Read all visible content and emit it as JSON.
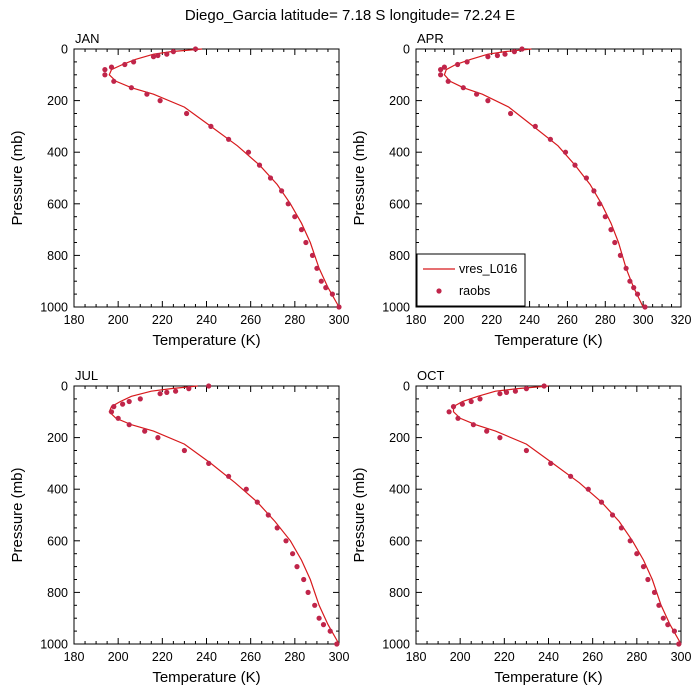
{
  "figure": {
    "title": "Diego_Garcia  latitude= 7.18 S longitude= 72.24 E"
  },
  "colors": {
    "model": "#d7191c",
    "obs": "#c0254a"
  },
  "chart_data": [
    {
      "type": "line",
      "panel": "JAN",
      "xlabel": "Temperature (K)",
      "ylabel": "Pressure (mb)",
      "xlim": [
        180,
        300
      ],
      "ylim": [
        0,
        1000
      ],
      "y_inverted": true,
      "xticks": [
        180,
        200,
        220,
        240,
        260,
        280,
        300
      ],
      "yticks": [
        0,
        200,
        400,
        600,
        800,
        1000
      ],
      "series": [
        {
          "name": "vres_L016",
          "style": "line",
          "x": [
            238,
            224,
            216,
            208,
            202,
            197,
            196,
            199,
            206,
            216,
            230,
            242,
            254,
            264,
            272,
            278,
            283,
            287,
            291,
            295,
            300
          ],
          "p": [
            0,
            10,
            20,
            40,
            60,
            80,
            100,
            125,
            150,
            175,
            225,
            300,
            375,
            450,
            525,
            600,
            675,
            750,
            850,
            925,
            1000
          ]
        },
        {
          "name": "raobs",
          "style": "points",
          "x": [
            235,
            225,
            222,
            218,
            216,
            207,
            203,
            197,
            194,
            194,
            198,
            206,
            213,
            219,
            231,
            242,
            250,
            259,
            264,
            269,
            274,
            277,
            280,
            283,
            285,
            288,
            290,
            292,
            294,
            297,
            300
          ],
          "p": [
            0,
            10,
            20,
            25,
            30,
            50,
            60,
            70,
            80,
            100,
            125,
            150,
            175,
            200,
            250,
            300,
            350,
            400,
            450,
            500,
            550,
            600,
            650,
            700,
            750,
            800,
            850,
            900,
            925,
            950,
            1000
          ]
        }
      ]
    },
    {
      "type": "line",
      "panel": "APR",
      "xlabel": "Temperature (K)",
      "ylabel": "Pressure (mb)",
      "xlim": [
        180,
        320
      ],
      "ylim": [
        0,
        1000
      ],
      "y_inverted": true,
      "xticks": [
        180,
        200,
        220,
        240,
        260,
        280,
        300,
        320
      ],
      "yticks": [
        0,
        200,
        400,
        600,
        800,
        1000
      ],
      "series": [
        {
          "name": "vres_L016",
          "style": "line",
          "x": [
            241,
            227,
            218,
            209,
            201,
            196,
            195,
            198,
            205,
            215,
            229,
            242,
            255,
            264,
            272,
            278,
            283,
            287,
            291,
            295,
            300
          ],
          "p": [
            0,
            10,
            20,
            40,
            60,
            80,
            100,
            125,
            150,
            175,
            225,
            300,
            375,
            450,
            525,
            600,
            675,
            750,
            850,
            925,
            1000
          ]
        },
        {
          "name": "raobs",
          "style": "points",
          "x": [
            236,
            232,
            227,
            223,
            218,
            207,
            202,
            195,
            193,
            193,
            197,
            205,
            212,
            218,
            230,
            243,
            251,
            259,
            264,
            270,
            274,
            277,
            280,
            283,
            285,
            288,
            291,
            293,
            295,
            297,
            301
          ],
          "p": [
            0,
            10,
            20,
            25,
            30,
            50,
            60,
            70,
            80,
            100,
            125,
            150,
            175,
            200,
            250,
            300,
            350,
            400,
            450,
            500,
            550,
            600,
            650,
            700,
            750,
            800,
            850,
            900,
            925,
            950,
            1000
          ]
        }
      ],
      "legend": {
        "position": "bottom-left",
        "entries": [
          "vres_L016",
          "raobs"
        ]
      }
    },
    {
      "type": "line",
      "panel": "JUL",
      "xlabel": "Temperature (K)",
      "ylabel": "Pressure (mb)",
      "xlim": [
        180,
        300
      ],
      "ylim": [
        0,
        1000
      ],
      "y_inverted": true,
      "xticks": [
        180,
        200,
        220,
        240,
        260,
        280,
        300
      ],
      "yticks": [
        0,
        200,
        400,
        600,
        800,
        1000
      ],
      "series": [
        {
          "name": "vres_L016",
          "style": "line",
          "x": [
            236,
            224,
            215,
            206,
            201,
            197,
            196,
            199,
            206,
            216,
            230,
            242,
            253,
            263,
            271,
            278,
            283,
            287,
            291,
            295,
            300
          ],
          "p": [
            0,
            10,
            20,
            40,
            60,
            80,
            100,
            125,
            150,
            175,
            225,
            300,
            375,
            450,
            525,
            600,
            675,
            750,
            850,
            925,
            1000
          ]
        },
        {
          "name": "raobs",
          "style": "points",
          "x": [
            241,
            232,
            226,
            222,
            219,
            210,
            205,
            202,
            198,
            197,
            200,
            205,
            212,
            218,
            230,
            241,
            250,
            258,
            263,
            268,
            272,
            276,
            279,
            281,
            284,
            286,
            289,
            291,
            293,
            296,
            299
          ],
          "p": [
            0,
            10,
            20,
            25,
            30,
            50,
            60,
            70,
            80,
            100,
            125,
            150,
            175,
            200,
            250,
            300,
            350,
            400,
            450,
            500,
            550,
            600,
            650,
            700,
            750,
            800,
            850,
            900,
            925,
            950,
            1000
          ]
        }
      ]
    },
    {
      "type": "line",
      "panel": "OCT",
      "xlabel": "Temperature (K)",
      "ylabel": "Pressure (mb)",
      "xlim": [
        180,
        300
      ],
      "ylim": [
        0,
        1000
      ],
      "y_inverted": true,
      "xticks": [
        180,
        200,
        220,
        240,
        260,
        280,
        300
      ],
      "yticks": [
        0,
        200,
        400,
        600,
        800,
        1000
      ],
      "series": [
        {
          "name": "vres_L016",
          "style": "line",
          "x": [
            240,
            226,
            216,
            208,
            201,
            197,
            197,
            200,
            207,
            216,
            230,
            242,
            254,
            264,
            272,
            278,
            283,
            287,
            291,
            295,
            300
          ],
          "p": [
            0,
            10,
            20,
            40,
            60,
            80,
            100,
            125,
            150,
            175,
            225,
            300,
            375,
            450,
            525,
            600,
            675,
            750,
            850,
            925,
            1000
          ]
        },
        {
          "name": "raobs",
          "style": "points",
          "x": [
            238,
            230,
            225,
            221,
            218,
            209,
            205,
            201,
            197,
            195,
            199,
            206,
            212,
            218,
            230,
            241,
            250,
            258,
            264,
            269,
            273,
            277,
            280,
            283,
            285,
            288,
            290,
            292,
            294,
            297,
            299
          ],
          "p": [
            0,
            10,
            20,
            25,
            30,
            50,
            60,
            70,
            80,
            100,
            125,
            150,
            175,
            200,
            250,
            300,
            350,
            400,
            450,
            500,
            550,
            600,
            650,
            700,
            750,
            800,
            850,
            900,
            925,
            950,
            1000
          ]
        }
      ]
    }
  ]
}
